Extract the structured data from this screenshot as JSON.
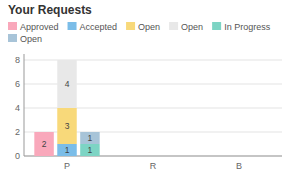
{
  "chart_data": {
    "type": "bar",
    "title": "Your Requests",
    "categories": [
      "P",
      "R",
      "B"
    ],
    "series": [
      {
        "name": "Approved",
        "color": "#f9a8bb",
        "values": [
          2,
          0,
          0
        ]
      },
      {
        "name": "Accepted",
        "color": "#7bbde8",
        "values": [
          1,
          0,
          0
        ]
      },
      {
        "name": "Open",
        "color": "#f8d97a",
        "values": [
          3,
          0,
          0
        ]
      },
      {
        "name": "Open",
        "color": "#e8e8e8",
        "values": [
          4,
          0,
          0
        ]
      },
      {
        "name": "In Progress",
        "color": "#7dd4c4",
        "values": [
          1,
          0,
          0
        ]
      },
      {
        "name": "Open",
        "color": "#a8c4d8",
        "values": [
          1,
          0,
          0
        ]
      }
    ],
    "stacked": [
      [
        0
      ],
      [
        1,
        2,
        3
      ],
      [
        4,
        5
      ]
    ],
    "ylim": [
      0,
      8.5
    ],
    "yticks": [
      0,
      2,
      4,
      6,
      8
    ],
    "grid": true,
    "legend": "top",
    "data_labels": true
  }
}
